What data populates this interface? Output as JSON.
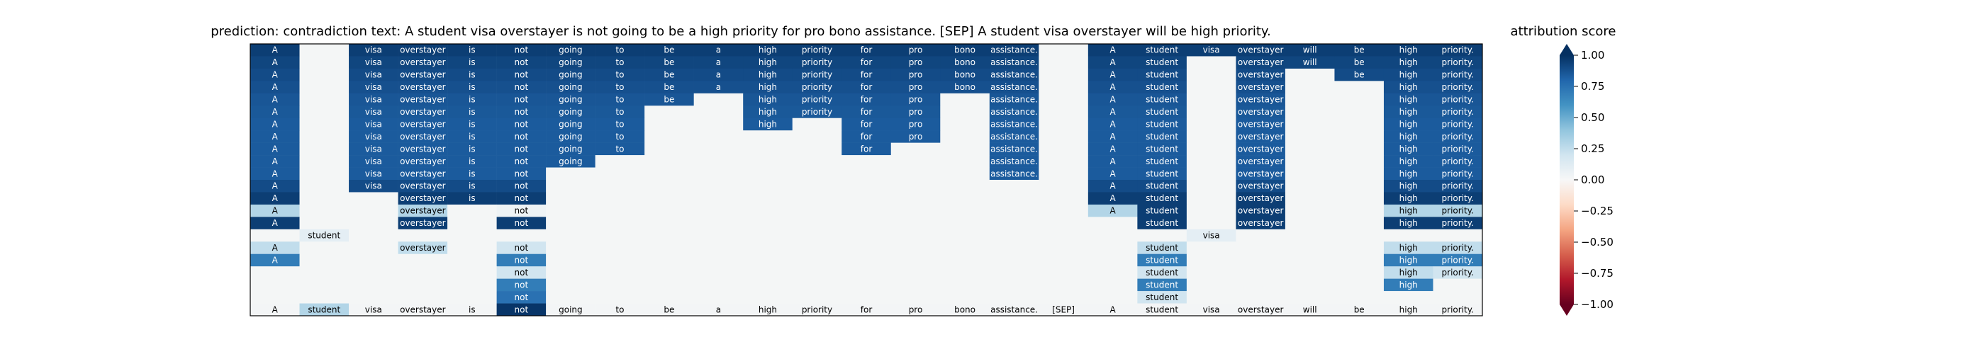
{
  "chart_data": {
    "type": "heatmap",
    "title": "prediction:  contradiction     text:  A student visa overstayer is not going to be a high priority for pro bono assistance. [SEP] A student visa overstayer will be high priority.",
    "tokens": [
      "A",
      "student",
      "visa",
      "overstayer",
      "is",
      "not",
      "going",
      "to",
      "be",
      "a",
      "high",
      "priority",
      "for",
      "pro",
      "bono",
      "assistance.",
      "[SEP]",
      "A",
      "student",
      "visa",
      "overstayer",
      "will",
      "be",
      "high",
      "priority."
    ],
    "rows": [
      [
        0.95,
        0,
        0.95,
        0.95,
        0.95,
        0.95,
        0.95,
        0.95,
        0.95,
        0.95,
        0.95,
        0.95,
        0.95,
        0.95,
        0.95,
        0.95,
        0,
        0.95,
        0.95,
        0.95,
        0.95,
        0.95,
        0.95,
        0.95,
        0.95
      ],
      [
        0.92,
        0,
        0.92,
        0.92,
        0.92,
        0.92,
        0.92,
        0.92,
        0.92,
        0.92,
        0.92,
        0.92,
        0.92,
        0.92,
        0.92,
        0.92,
        0,
        0.92,
        0.92,
        0,
        0.92,
        0.92,
        0.92,
        0.92,
        0.92
      ],
      [
        0.9,
        0,
        0.9,
        0.9,
        0.9,
        0.9,
        0.9,
        0.9,
        0.9,
        0.9,
        0.9,
        0.9,
        0.9,
        0.9,
        0.9,
        0.9,
        0,
        0.9,
        0.9,
        0,
        0.9,
        0,
        0.9,
        0.9,
        0.9
      ],
      [
        0.88,
        0,
        0.88,
        0.88,
        0.88,
        0.88,
        0.88,
        0.88,
        0.88,
        0.88,
        0.88,
        0.88,
        0.88,
        0.88,
        0.88,
        0.88,
        0,
        0.88,
        0.88,
        0,
        0.88,
        0,
        0,
        0.88,
        0.88
      ],
      [
        0.86,
        0,
        0.86,
        0.86,
        0.86,
        0.86,
        0.86,
        0.86,
        0.86,
        0,
        0.86,
        0.86,
        0.86,
        0.86,
        0,
        0.86,
        0,
        0.86,
        0.86,
        0,
        0.86,
        0,
        0,
        0.86,
        0.86
      ],
      [
        0.85,
        0,
        0.85,
        0.85,
        0.85,
        0.85,
        0.85,
        0.85,
        0,
        0,
        0.85,
        0.85,
        0.85,
        0.85,
        0,
        0.85,
        0,
        0.85,
        0.85,
        0,
        0.85,
        0,
        0,
        0.85,
        0.85
      ],
      [
        0.84,
        0,
        0.84,
        0.84,
        0.84,
        0.84,
        0.84,
        0.84,
        0,
        0,
        0.84,
        0,
        0.84,
        0.84,
        0,
        0.84,
        0,
        0.84,
        0.84,
        0,
        0.84,
        0,
        0,
        0.84,
        0.84
      ],
      [
        0.84,
        0,
        0.84,
        0.84,
        0.84,
        0.84,
        0.84,
        0.84,
        0,
        0,
        0,
        0,
        0.84,
        0.84,
        0,
        0.84,
        0,
        0.84,
        0.84,
        0,
        0.84,
        0,
        0,
        0.84,
        0.84
      ],
      [
        0.84,
        0,
        0.84,
        0.84,
        0.84,
        0.84,
        0.84,
        0.84,
        0,
        0,
        0,
        0,
        0.84,
        0,
        0,
        0.84,
        0,
        0.84,
        0.84,
        0,
        0.84,
        0,
        0,
        0.84,
        0.84
      ],
      [
        0.84,
        0,
        0.84,
        0.84,
        0.84,
        0.84,
        0.84,
        0,
        0,
        0,
        0,
        0,
        0,
        0,
        0,
        0.84,
        0,
        0.84,
        0.84,
        0,
        0.84,
        0,
        0,
        0.84,
        0.84
      ],
      [
        0.84,
        0,
        0.84,
        0.84,
        0.84,
        0.84,
        0,
        0,
        0,
        0,
        0,
        0,
        0,
        0,
        0,
        0.84,
        0,
        0.84,
        0.84,
        0,
        0.84,
        0,
        0,
        0.84,
        0.84
      ],
      [
        0.9,
        0,
        0.9,
        0.9,
        0.9,
        0.9,
        0,
        0,
        0,
        0,
        0,
        0,
        0,
        0,
        0,
        0,
        0,
        0.9,
        0.9,
        0,
        0.9,
        0,
        0,
        0.9,
        0.9
      ],
      [
        0.95,
        0,
        0,
        0.95,
        0.95,
        0.95,
        0,
        0,
        0,
        0,
        0,
        0,
        0,
        0,
        0,
        0,
        0,
        0.95,
        0.95,
        0,
        0.95,
        0,
        0,
        0.95,
        0.95
      ],
      [
        0.3,
        0,
        0,
        0.3,
        0,
        0.05,
        0,
        0,
        0,
        0,
        0,
        0,
        0,
        0,
        0,
        0,
        0,
        0.3,
        0.95,
        0,
        0.95,
        0,
        0,
        0.3,
        0.3
      ],
      [
        0.95,
        0,
        0,
        0.95,
        0,
        0.95,
        0,
        0,
        0,
        0,
        0,
        0,
        0,
        0,
        0,
        0,
        0,
        0,
        0.95,
        0,
        0.95,
        0,
        0,
        0.95,
        0.95
      ],
      [
        0,
        0.1,
        0,
        0,
        0,
        0,
        0,
        0,
        0,
        0,
        0,
        0,
        0,
        0,
        0,
        0,
        0,
        0,
        0,
        0.1,
        0,
        0,
        0,
        0,
        0
      ],
      [
        0.25,
        0,
        0,
        0.25,
        0,
        0.2,
        0,
        0,
        0,
        0,
        0,
        0,
        0,
        0,
        0,
        0,
        0,
        0,
        0.25,
        0,
        0,
        0,
        0,
        0.25,
        0.25
      ],
      [
        0.7,
        0,
        0,
        0,
        0,
        0.7,
        0,
        0,
        0,
        0,
        0,
        0,
        0,
        0,
        0,
        0,
        0,
        0,
        0.7,
        0,
        0,
        0,
        0,
        0.7,
        0.7
      ],
      [
        0,
        0,
        0,
        0,
        0,
        0.2,
        0,
        0,
        0,
        0,
        0,
        0,
        0,
        0,
        0,
        0,
        0,
        0,
        0.2,
        0,
        0,
        0,
        0,
        0.25,
        0.2
      ],
      [
        0,
        0,
        0,
        0,
        0,
        0.7,
        0,
        0,
        0,
        0,
        0,
        0,
        0,
        0,
        0,
        0,
        0,
        0,
        0.7,
        0,
        0,
        0,
        0,
        0.7,
        0
      ],
      [
        0,
        0,
        0,
        0,
        0,
        0.75,
        0,
        0,
        0,
        0,
        0,
        0,
        0,
        0,
        0,
        0,
        0,
        0,
        0.2,
        0,
        0,
        0,
        0,
        0,
        0
      ],
      [
        0.02,
        0.3,
        0.02,
        0.02,
        0.02,
        0.98,
        0.02,
        0.02,
        0.02,
        0.02,
        0.02,
        0.02,
        0.02,
        0.02,
        0.02,
        0.02,
        0.02,
        0.02,
        0.02,
        0.02,
        0.02,
        0.02,
        0.02,
        0.02,
        0.02
      ]
    ],
    "colorbar": {
      "label": "attribution score",
      "range": [
        -1,
        1
      ],
      "ticks": [
        "1.00",
        "0.75",
        "0.50",
        "0.25",
        "0.00",
        "−0.25",
        "−0.50",
        "−0.75",
        "−1.00"
      ],
      "colors": [
        "#67001f",
        "#b2182b",
        "#d6604d",
        "#f4a582",
        "#fddbc7",
        "#f7f7f7",
        "#d1e5f0",
        "#92c5de",
        "#4393c3",
        "#2166ac",
        "#053061"
      ],
      "zero_color": "#f4f6f6"
    }
  }
}
